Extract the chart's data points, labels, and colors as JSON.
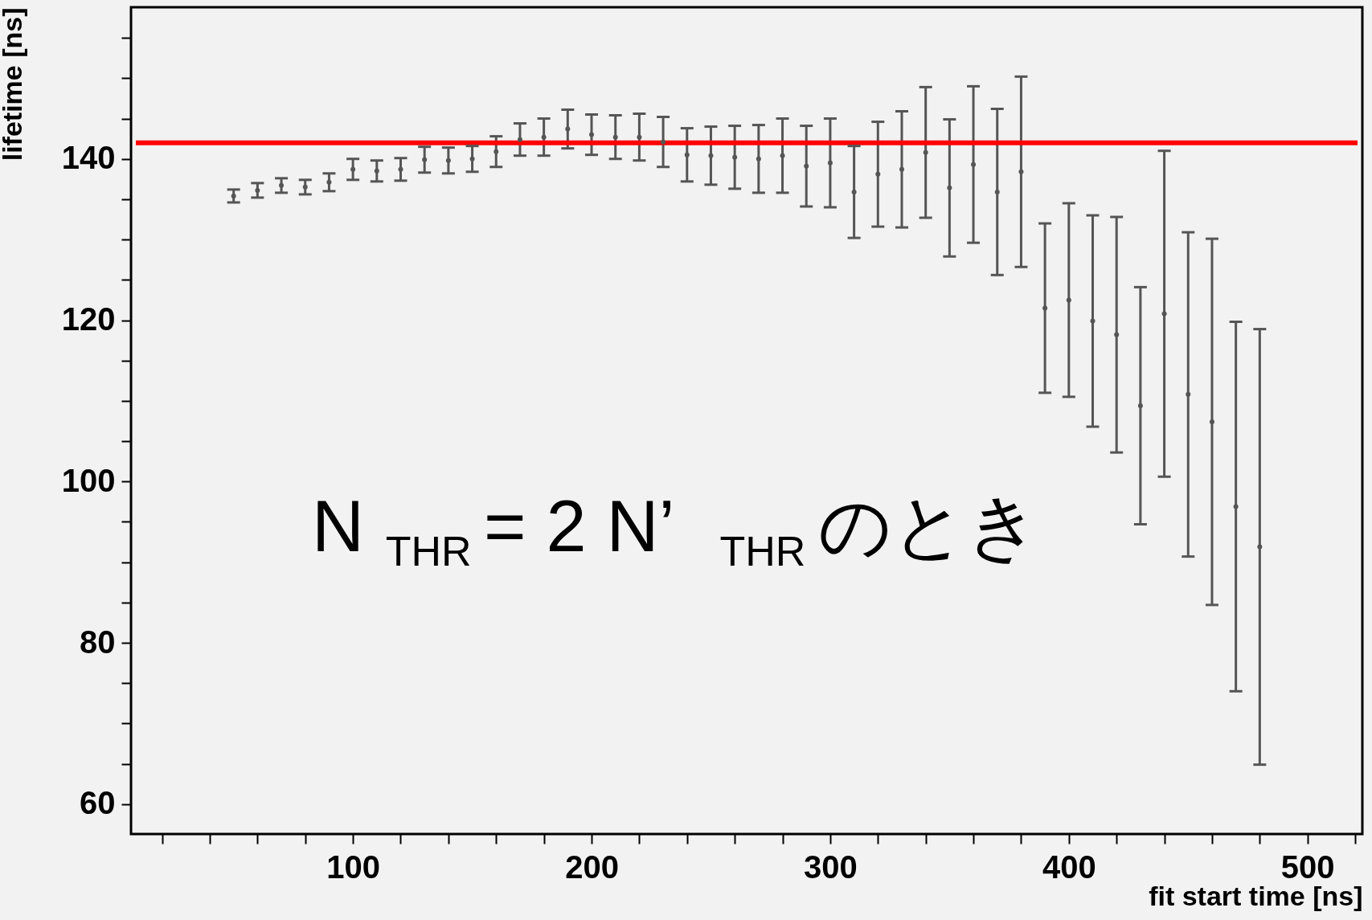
{
  "chart_data": {
    "type": "scatter",
    "xlabel": "fit start time [ns]",
    "ylabel": "lifetime [ns]",
    "x": [
      50,
      60,
      70,
      80,
      90,
      100,
      110,
      120,
      130,
      140,
      150,
      160,
      170,
      180,
      190,
      200,
      210,
      220,
      230,
      240,
      250,
      260,
      270,
      280,
      290,
      300,
      310,
      320,
      330,
      340,
      350,
      360,
      370,
      380,
      390,
      400,
      410,
      420,
      430,
      440,
      450,
      460,
      470,
      480
    ],
    "series": [
      {
        "color": "#555555",
        "values": [
          135.4,
          136.1,
          136.7,
          136.5,
          137.1,
          138.7,
          138.5,
          138.7,
          139.9,
          139.8,
          140.0,
          140.9,
          142.4,
          142.7,
          143.7,
          143.0,
          142.7,
          142.7,
          142.1,
          140.5,
          140.4,
          140.2,
          140.0,
          140.4,
          139.1,
          139.5,
          135.9,
          138.1,
          138.7,
          140.8,
          136.4,
          139.3,
          135.9,
          138.4,
          121.5,
          122.5,
          119.9,
          118.2,
          109.4,
          120.8,
          110.8,
          107.4,
          96.9,
          91.9
        ],
        "errors": [
          0.8,
          0.9,
          0.9,
          0.9,
          1.1,
          1.3,
          1.3,
          1.4,
          1.6,
          1.6,
          1.6,
          1.9,
          2.0,
          2.3,
          2.4,
          2.5,
          2.7,
          2.9,
          3.1,
          3.3,
          3.6,
          3.9,
          4.2,
          4.6,
          5.0,
          5.5,
          5.7,
          6.5,
          7.2,
          8.1,
          8.5,
          9.7,
          10.3,
          11.8,
          10.5,
          12.0,
          13.1,
          14.6,
          14.7,
          20.2,
          20.1,
          22.7,
          22.9,
          27.0
        ]
      }
    ],
    "marker": "circle",
    "xlim": [
      7,
      523
    ],
    "ylim": [
      56.3,
      158.8
    ],
    "xticks": [
      {
        "value": 20,
        "label": null
      },
      {
        "value": 40,
        "label": null
      },
      {
        "value": 60,
        "label": null
      },
      {
        "value": 80,
        "label": null
      },
      100,
      {
        "value": 120,
        "label": null
      },
      {
        "value": 140,
        "label": null
      },
      {
        "value": 160,
        "label": null
      },
      {
        "value": 180,
        "label": null
      },
      200,
      {
        "value": 220,
        "label": null
      },
      {
        "value": 240,
        "label": null
      },
      {
        "value": 260,
        "label": null
      },
      {
        "value": 280,
        "label": null
      },
      300,
      {
        "value": 320,
        "label": null
      },
      {
        "value": 340,
        "label": null
      },
      {
        "value": 360,
        "label": null
      },
      {
        "value": 380,
        "label": null
      },
      400,
      {
        "value": 420,
        "label": null
      },
      {
        "value": 440,
        "label": null
      },
      {
        "value": 460,
        "label": null
      },
      {
        "value": 480,
        "label": null
      },
      500,
      {
        "value": 520,
        "label": null
      }
    ],
    "yticks": [
      60,
      {
        "value": 65,
        "label": null
      },
      {
        "value": 70,
        "label": null
      },
      {
        "value": 75,
        "label": null
      },
      80,
      {
        "value": 85,
        "label": null
      },
      {
        "value": 90,
        "label": null
      },
      {
        "value": 95,
        "label": null
      },
      100,
      {
        "value": 105,
        "label": null
      },
      {
        "value": 110,
        "label": null
      },
      {
        "value": 115,
        "label": null
      },
      120,
      {
        "value": 125,
        "label": null
      },
      {
        "value": 130,
        "label": null
      },
      {
        "value": 135,
        "label": null
      },
      140,
      {
        "value": 145,
        "label": null
      },
      {
        "value": 150,
        "label": null
      },
      {
        "value": 155,
        "label": null
      }
    ],
    "ref_lines": [
      {
        "axis": "y",
        "value": 142,
        "color": "#ff0000"
      }
    ],
    "annotations": [
      "N$_{THR}$ = 2 N’$_{THR}$ のとき"
    ],
    "grid": false
  }
}
